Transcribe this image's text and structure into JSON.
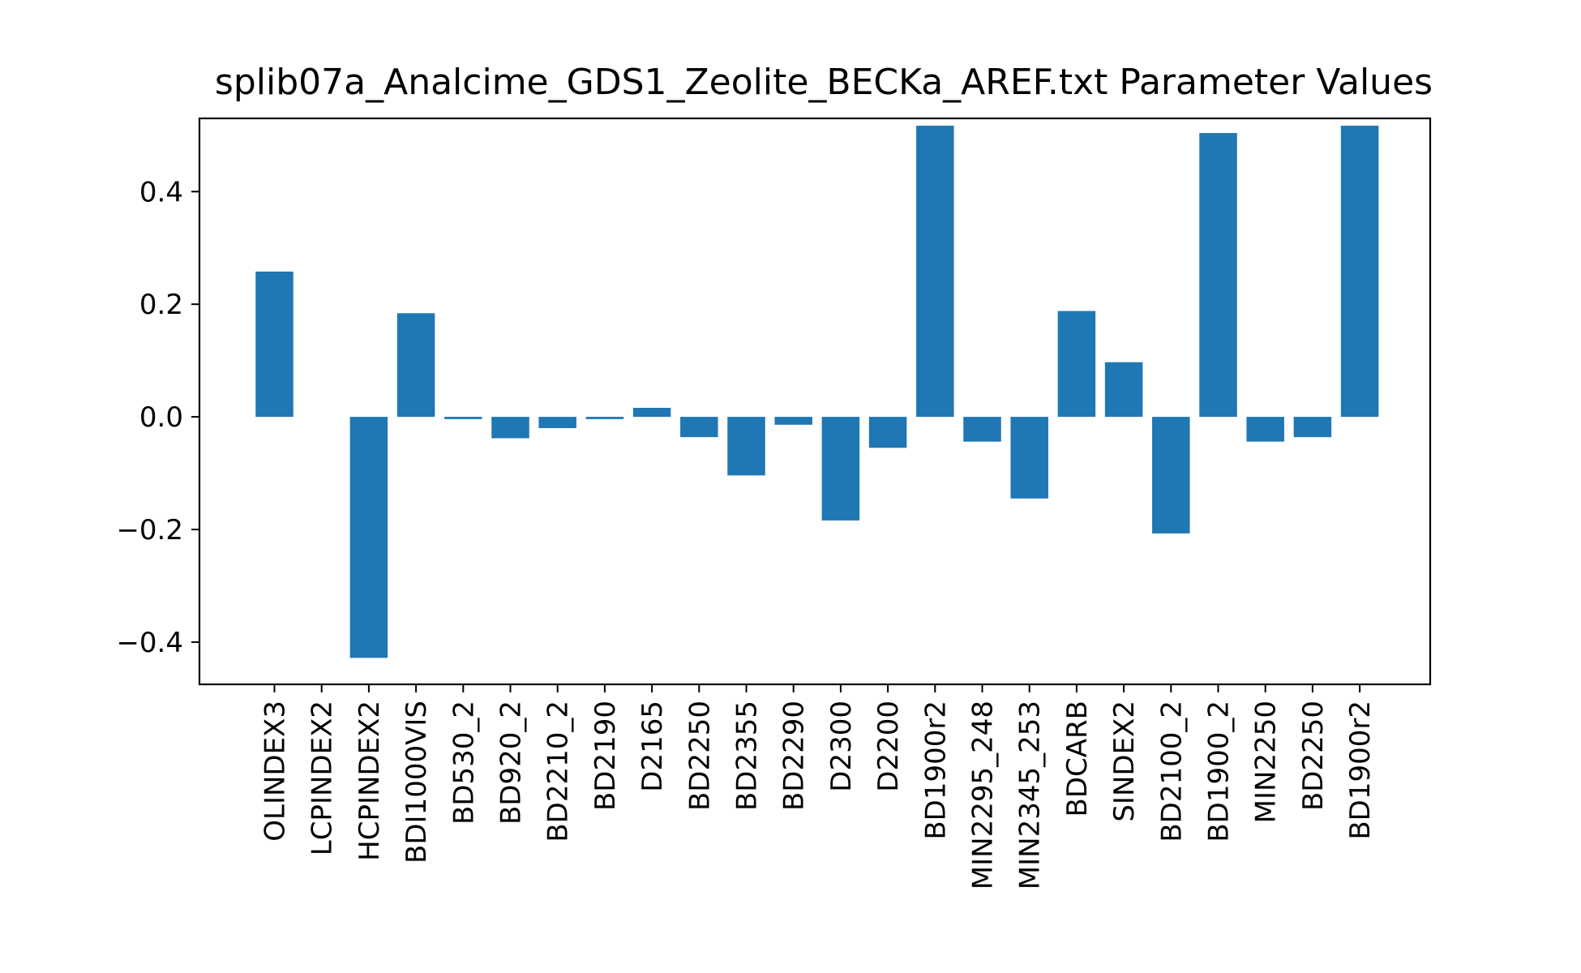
{
  "chart_data": {
    "type": "bar",
    "title": "splib07a_Analcime_GDS1_Zeolite_BECKa_AREF.txt Parameter Values",
    "xlabel": "",
    "ylabel": "",
    "ylim": [
      -0.475,
      0.53
    ],
    "grid": false,
    "bar_color": "#1f77b4",
    "yticks": [
      {
        "value": -0.4,
        "label": "−0.4"
      },
      {
        "value": -0.2,
        "label": "−0.2"
      },
      {
        "value": 0.0,
        "label": "0.0"
      },
      {
        "value": 0.2,
        "label": "0.2"
      },
      {
        "value": 0.4,
        "label": "0.4"
      }
    ],
    "categories": [
      "OLINDEX3",
      "LCPINDEX2",
      "HCPINDEX2",
      "BDI1000VIS",
      "BD530_2",
      "BD920_2",
      "BD2210_2",
      "BD2190",
      "D2165",
      "BD2250",
      "BD2355",
      "BD2290",
      "D2300",
      "D2200",
      "BD1900r2",
      "MIN2295_248",
      "MIN2345_253",
      "BDCARB",
      "SINDEX2",
      "BD2100_2",
      "BD1900_2",
      "MIN2250",
      "BD2250",
      "BD1900r2"
    ],
    "values": [
      0.258,
      0.0,
      -0.428,
      0.184,
      -0.004,
      -0.038,
      -0.02,
      -0.004,
      0.016,
      -0.036,
      -0.104,
      -0.014,
      -0.184,
      -0.055,
      0.517,
      -0.044,
      -0.145,
      0.188,
      0.097,
      -0.207,
      0.504,
      -0.044,
      -0.036,
      0.517
    ]
  }
}
